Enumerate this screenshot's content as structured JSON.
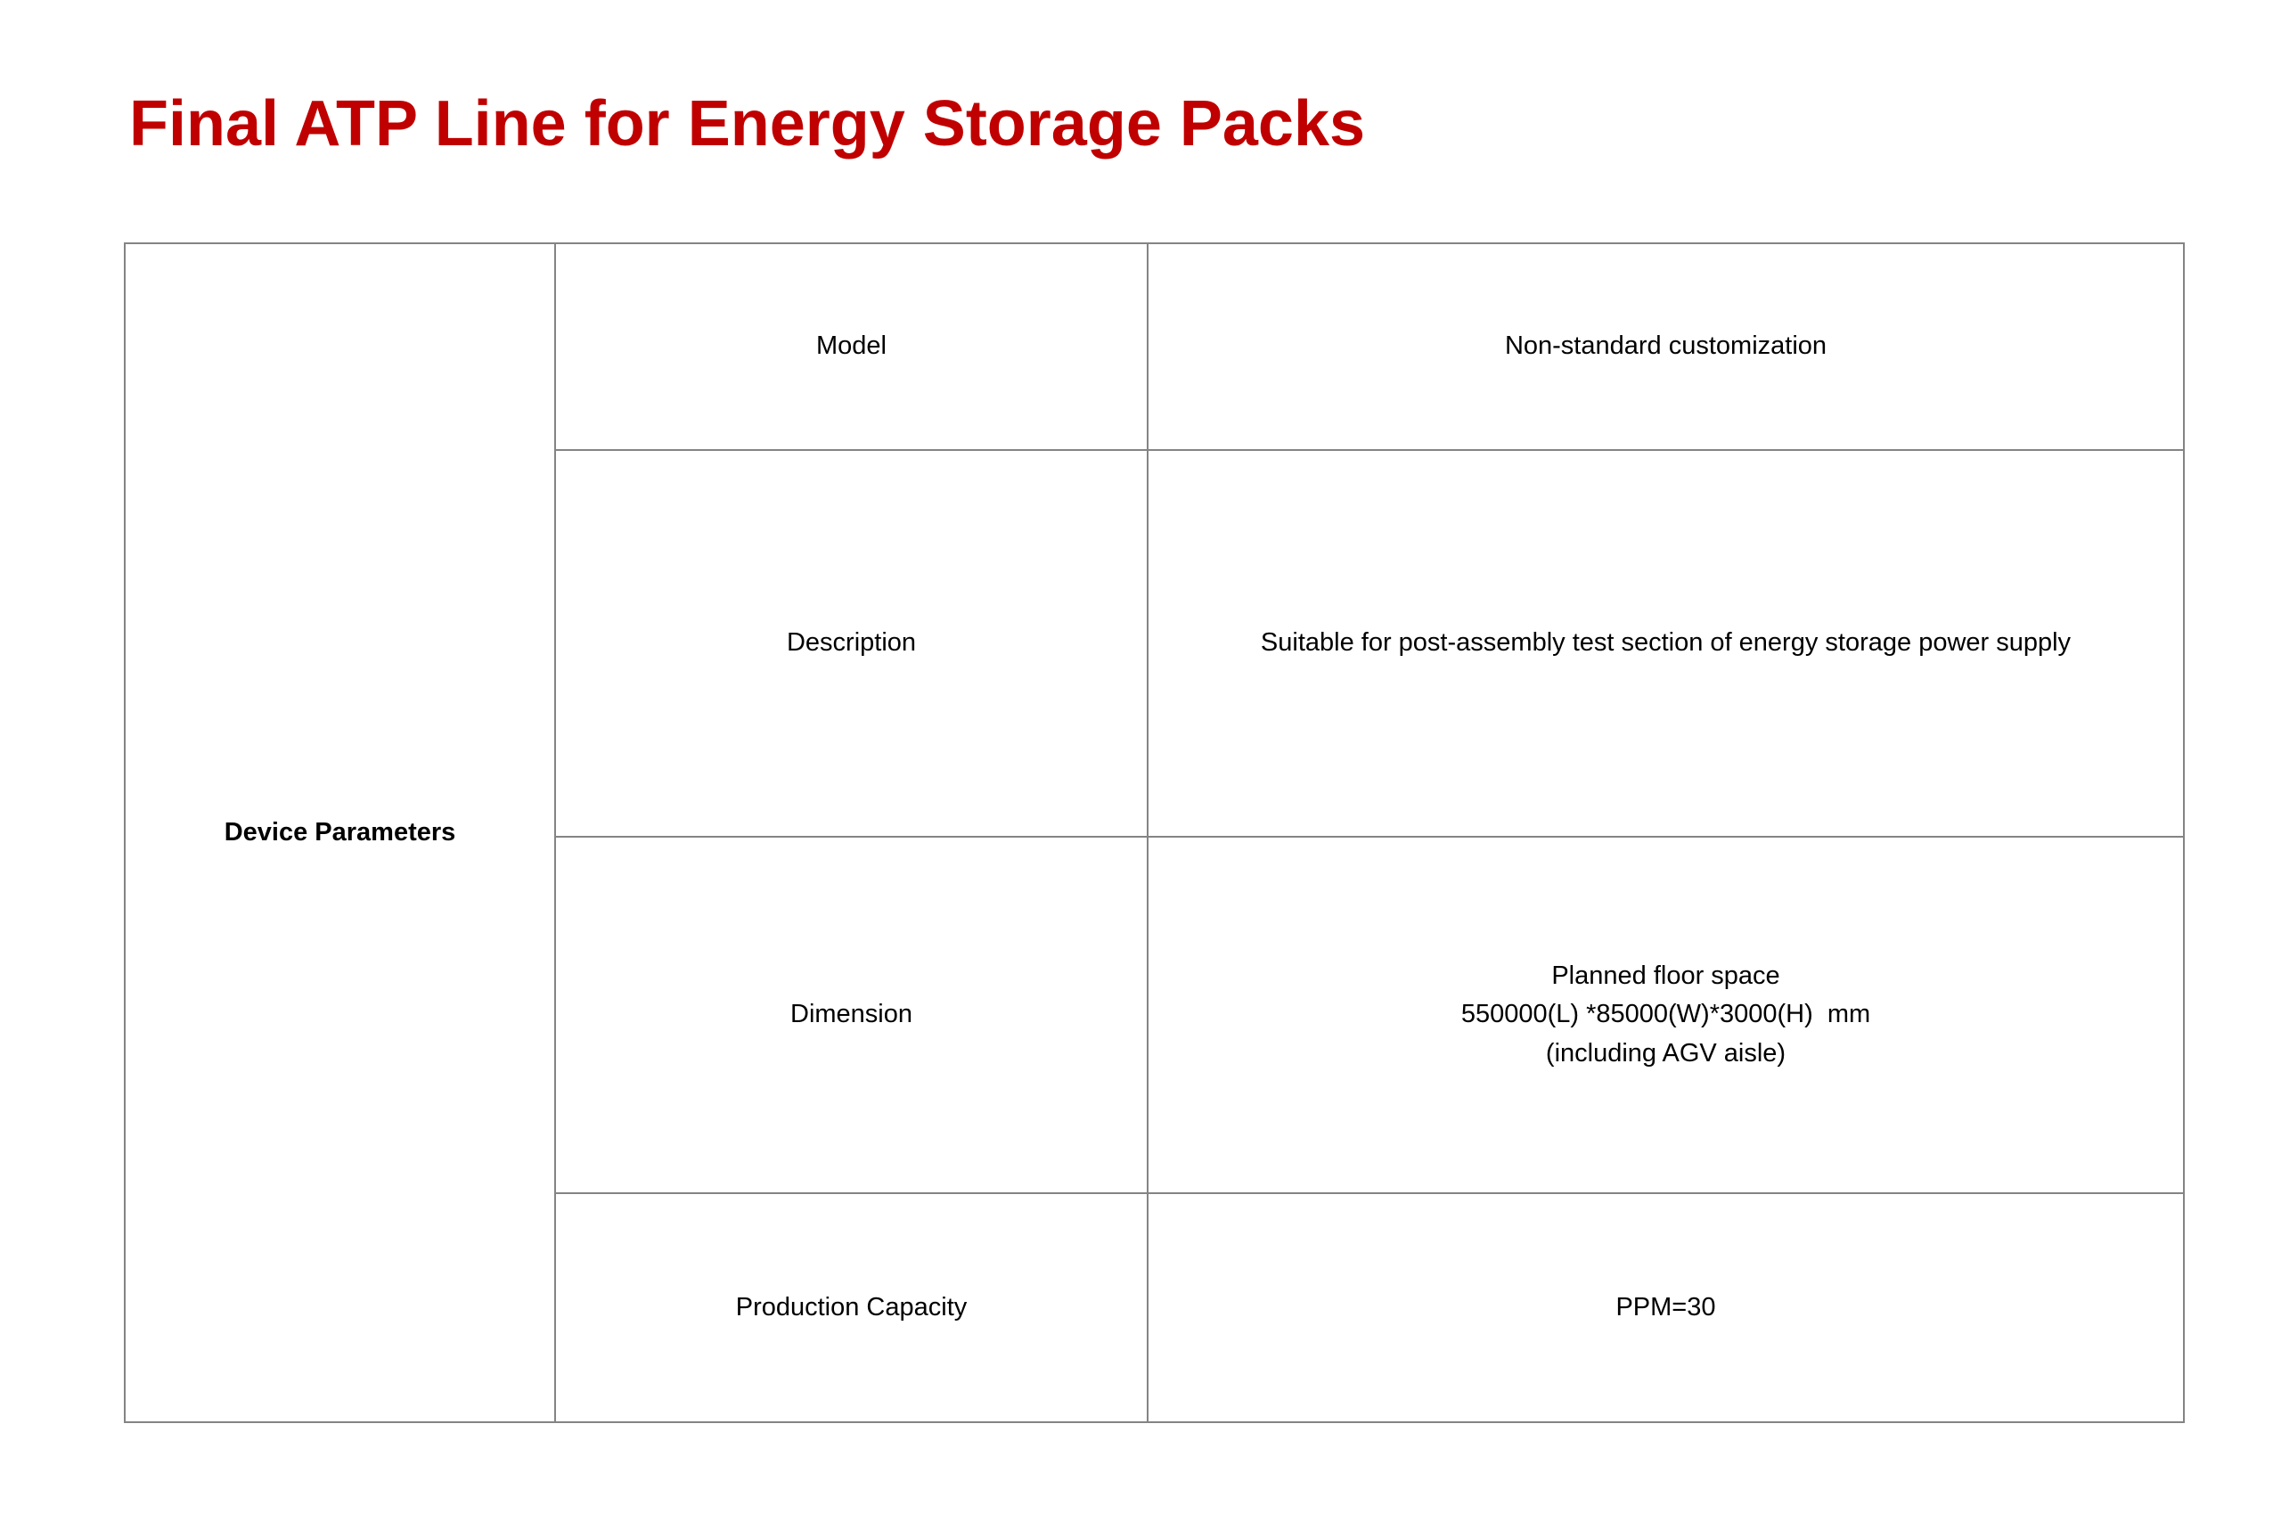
{
  "colors": {
    "title_red": "#C00000",
    "table_border": "#848484",
    "text_black": "#000000",
    "background": "#ffffff"
  },
  "page": {
    "title": "Final ATP Line for Energy Storage Packs"
  },
  "table": {
    "row_header": "Device Parameters",
    "rows": [
      {
        "label": "Model",
        "value": "Non-standard customization"
      },
      {
        "label": "Description",
        "value": "Suitable for post-assembly test section of energy storage power supply"
      },
      {
        "label": "Dimension",
        "value_lines": [
          "Planned floor space",
          "550000(L) *85000(W)*3000(H)  mm",
          "(including AGV aisle)"
        ]
      },
      {
        "label": "Production Capacity",
        "value": "PPM=30"
      }
    ]
  }
}
